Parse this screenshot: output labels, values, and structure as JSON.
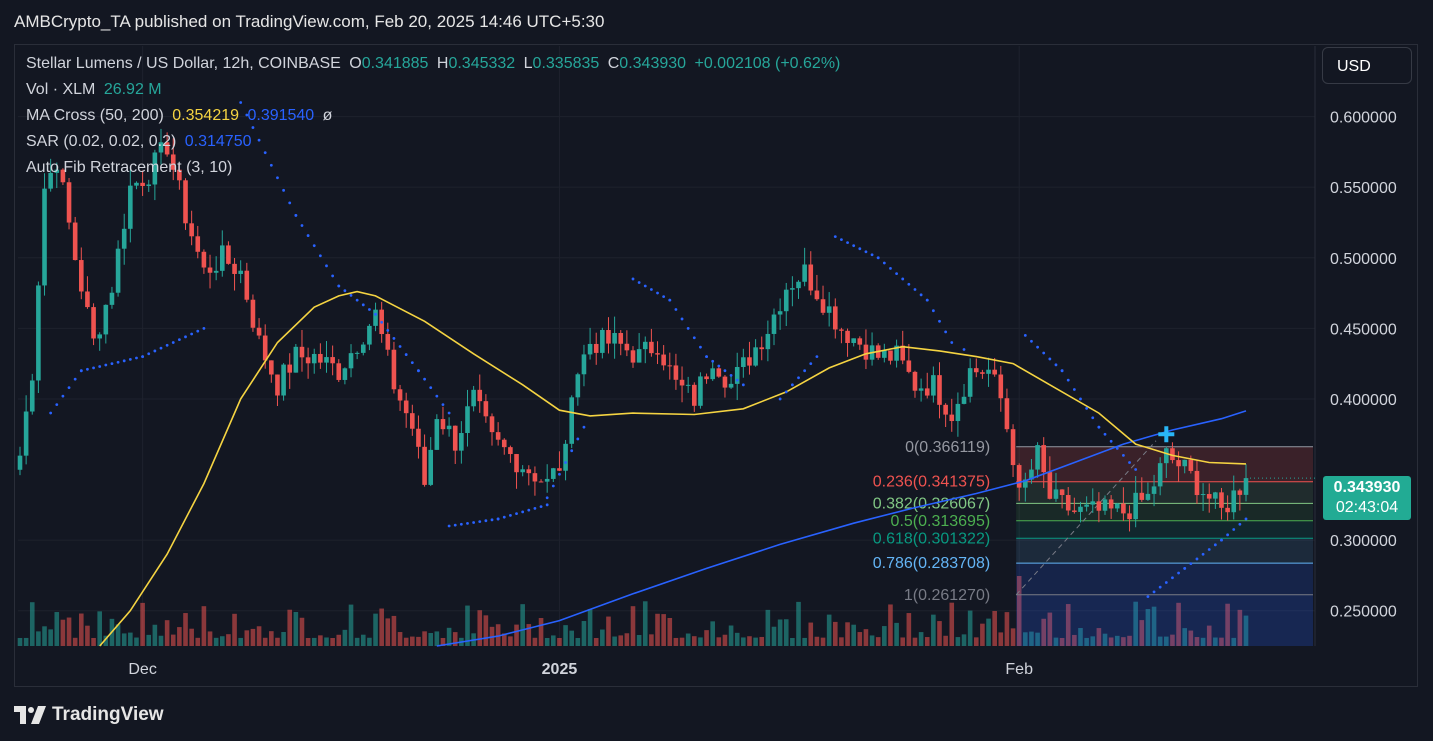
{
  "header": {
    "publisher_line": "AMBCrypto_TA published on TradingView.com, Feb 20, 2025 14:46 UTC+5:30"
  },
  "currency_button": {
    "label": "USD"
  },
  "footer": {
    "brand": "TradingView"
  },
  "legend": {
    "symbol": "Stellar Lumens / US Dollar, 12h, COINBASE",
    "o_label": "O",
    "o_value": "0.341885",
    "h_label": "H",
    "h_value": "0.345332",
    "l_label": "L",
    "l_value": "0.335835",
    "c_label": "C",
    "c_value": "0.343930",
    "change": "+0.002108 (+0.62%)",
    "vol_label": "Vol · XLM",
    "vol_value": "26.92 M",
    "ma_label": "MA Cross (50, 200)",
    "ma50_value": "0.354219",
    "ma200_value": "0.391540",
    "ma_symbol": "ø",
    "sar_label": "SAR (0.02, 0.02, 0.2)",
    "sar_value": "0.314750",
    "fib_label": "Auto Fib Retracement (3, 10)"
  },
  "price_tag": {
    "price": "0.343930",
    "countdown": "02:43:04"
  },
  "colors": {
    "up": "#26a69a",
    "down": "#ef5350",
    "ma50": "#f5d442",
    "ma200": "#2962ff",
    "sar": "#2962ff",
    "background": "#131722",
    "grid": "#1e222d"
  },
  "chart_data": {
    "type": "candlestick",
    "title": "Stellar Lumens / US Dollar, 12h, COINBASE",
    "ylim": [
      0.225,
      0.65
    ],
    "y_ticks": [
      "0.250000",
      "0.300000",
      "0.400000",
      "0.450000",
      "0.500000",
      "0.550000",
      "0.600000"
    ],
    "x_ticks": [
      {
        "label": "Dec",
        "idx": 20
      },
      {
        "label": "2025",
        "idx": 88
      },
      {
        "label": "Feb",
        "idx": 163
      }
    ],
    "grid": true,
    "candles_count": 201,
    "price_anchors": [
      [
        0,
        0.36
      ],
      [
        2,
        0.42
      ],
      [
        4,
        0.55
      ],
      [
        6,
        0.57
      ],
      [
        9,
        0.5
      ],
      [
        12,
        0.44
      ],
      [
        15,
        0.48
      ],
      [
        18,
        0.55
      ],
      [
        21,
        0.56
      ],
      [
        24,
        0.58
      ],
      [
        27,
        0.53
      ],
      [
        30,
        0.49
      ],
      [
        33,
        0.5
      ],
      [
        36,
        0.49
      ],
      [
        39,
        0.44
      ],
      [
        42,
        0.41
      ],
      [
        45,
        0.43
      ],
      [
        48,
        0.43
      ],
      [
        52,
        0.42
      ],
      [
        55,
        0.44
      ],
      [
        58,
        0.46
      ],
      [
        61,
        0.41
      ],
      [
        64,
        0.38
      ],
      [
        66,
        0.34
      ],
      [
        68,
        0.39
      ],
      [
        71,
        0.37
      ],
      [
        74,
        0.4
      ],
      [
        77,
        0.37
      ],
      [
        80,
        0.36
      ],
      [
        83,
        0.35
      ],
      [
        86,
        0.34
      ],
      [
        89,
        0.36
      ],
      [
        90,
        0.41
      ],
      [
        93,
        0.44
      ],
      [
        97,
        0.44
      ],
      [
        101,
        0.43
      ],
      [
        104,
        0.44
      ],
      [
        107,
        0.41
      ],
      [
        110,
        0.4
      ],
      [
        113,
        0.43
      ],
      [
        116,
        0.41
      ],
      [
        119,
        0.43
      ],
      [
        122,
        0.45
      ],
      [
        125,
        0.48
      ],
      [
        128,
        0.49
      ],
      [
        131,
        0.47
      ],
      [
        134,
        0.45
      ],
      [
        137,
        0.44
      ],
      [
        140,
        0.43
      ],
      [
        143,
        0.43
      ],
      [
        146,
        0.41
      ],
      [
        149,
        0.41
      ],
      [
        152,
        0.39
      ],
      [
        155,
        0.42
      ],
      [
        158,
        0.42
      ],
      [
        160,
        0.4
      ],
      [
        162,
        0.36
      ],
      [
        163,
        0.33
      ],
      [
        166,
        0.36
      ],
      [
        168,
        0.33
      ],
      [
        172,
        0.32
      ],
      [
        176,
        0.32
      ],
      [
        180,
        0.32
      ],
      [
        184,
        0.33
      ],
      [
        187,
        0.36
      ],
      [
        190,
        0.35
      ],
      [
        194,
        0.33
      ],
      [
        196,
        0.32
      ],
      [
        200,
        0.344
      ]
    ],
    "series": [
      {
        "name": "MA Cross 50",
        "points": [
          [
            13,
            0.225
          ],
          [
            18,
            0.25
          ],
          [
            24,
            0.29
          ],
          [
            30,
            0.34
          ],
          [
            36,
            0.4
          ],
          [
            42,
            0.44
          ],
          [
            48,
            0.465
          ],
          [
            52,
            0.473
          ],
          [
            55,
            0.476
          ],
          [
            58,
            0.473
          ],
          [
            66,
            0.455
          ],
          [
            74,
            0.432
          ],
          [
            82,
            0.41
          ],
          [
            88,
            0.392
          ],
          [
            93,
            0.388
          ],
          [
            100,
            0.39
          ],
          [
            110,
            0.389
          ],
          [
            118,
            0.393
          ],
          [
            125,
            0.405
          ],
          [
            132,
            0.422
          ],
          [
            138,
            0.432
          ],
          [
            144,
            0.437
          ],
          [
            150,
            0.434
          ],
          [
            156,
            0.43
          ],
          [
            162,
            0.425
          ],
          [
            168,
            0.41
          ],
          [
            176,
            0.39
          ],
          [
            182,
            0.368
          ],
          [
            188,
            0.36
          ],
          [
            194,
            0.355
          ],
          [
            200,
            0.354
          ]
        ]
      },
      {
        "name": "MA Cross 200",
        "points": [
          [
            68,
            0.225
          ],
          [
            78,
            0.232
          ],
          [
            88,
            0.243
          ],
          [
            100,
            0.262
          ],
          [
            112,
            0.28
          ],
          [
            124,
            0.297
          ],
          [
            136,
            0.312
          ],
          [
            146,
            0.323
          ],
          [
            156,
            0.333
          ],
          [
            164,
            0.342
          ],
          [
            172,
            0.355
          ],
          [
            180,
            0.368
          ],
          [
            188,
            0.378
          ],
          [
            196,
            0.386
          ],
          [
            200,
            0.3915
          ]
        ]
      },
      {
        "name": "SAR",
        "segments": [
          [
            [
              5,
              0.39
            ],
            [
              10,
              0.42
            ],
            [
              20,
              0.43
            ],
            [
              30,
              0.45
            ]
          ],
          [
            [
              36,
              0.61
            ],
            [
              45,
              0.53
            ],
            [
              52,
              0.48
            ],
            [
              58,
              0.46
            ],
            [
              65,
              0.42
            ],
            [
              70,
              0.39
            ]
          ],
          [
            [
              70,
              0.31
            ],
            [
              78,
              0.315
            ],
            [
              86,
              0.325
            ]
          ],
          [
            [
              86,
              0.33
            ],
            [
              92,
              0.38
            ]
          ],
          [
            [
              100,
              0.485
            ],
            [
              106,
              0.47
            ],
            [
              112,
              0.43
            ],
            [
              118,
              0.41
            ]
          ],
          [
            [
              124,
              0.4
            ],
            [
              130,
              0.43
            ]
          ],
          [
            [
              133,
              0.515
            ],
            [
              140,
              0.5
            ],
            [
              148,
              0.47
            ],
            [
              152,
              0.44
            ]
          ],
          [
            [
              154,
              0.435
            ]
          ],
          [
            [
              164,
              0.445
            ],
            [
              170,
              0.42
            ],
            [
              176,
              0.38
            ],
            [
              182,
              0.35
            ]
          ],
          [
            [
              184,
              0.26
            ],
            [
              190,
              0.28
            ],
            [
              196,
              0.3
            ],
            [
              200,
              0.315
            ]
          ]
        ]
      }
    ],
    "fib_levels": [
      {
        "label": "0(0.366119)",
        "value": 0.366119,
        "color": "#9598a1"
      },
      {
        "label": "0.236(0.341375)",
        "value": 0.341375,
        "color": "#ef5350"
      },
      {
        "label": "0.382(0.326067)",
        "value": 0.326067,
        "color": "#81c784"
      },
      {
        "label": "0.5(0.313695)",
        "value": 0.313695,
        "color": "#4caf50"
      },
      {
        "label": "0.618(0.301322)",
        "value": 0.301322,
        "color": "#089981"
      },
      {
        "label": "0.786(0.283708)",
        "value": 0.283708,
        "color": "#64b5f6"
      },
      {
        "label": "1(0.261270)",
        "value": 0.26127,
        "color": "#787b86"
      }
    ],
    "fib_start_idx": 163,
    "fib_end_idx": 200,
    "ma_cross_marker": {
      "idx": 187,
      "value": 0.375
    },
    "last_price": 0.34393
  }
}
